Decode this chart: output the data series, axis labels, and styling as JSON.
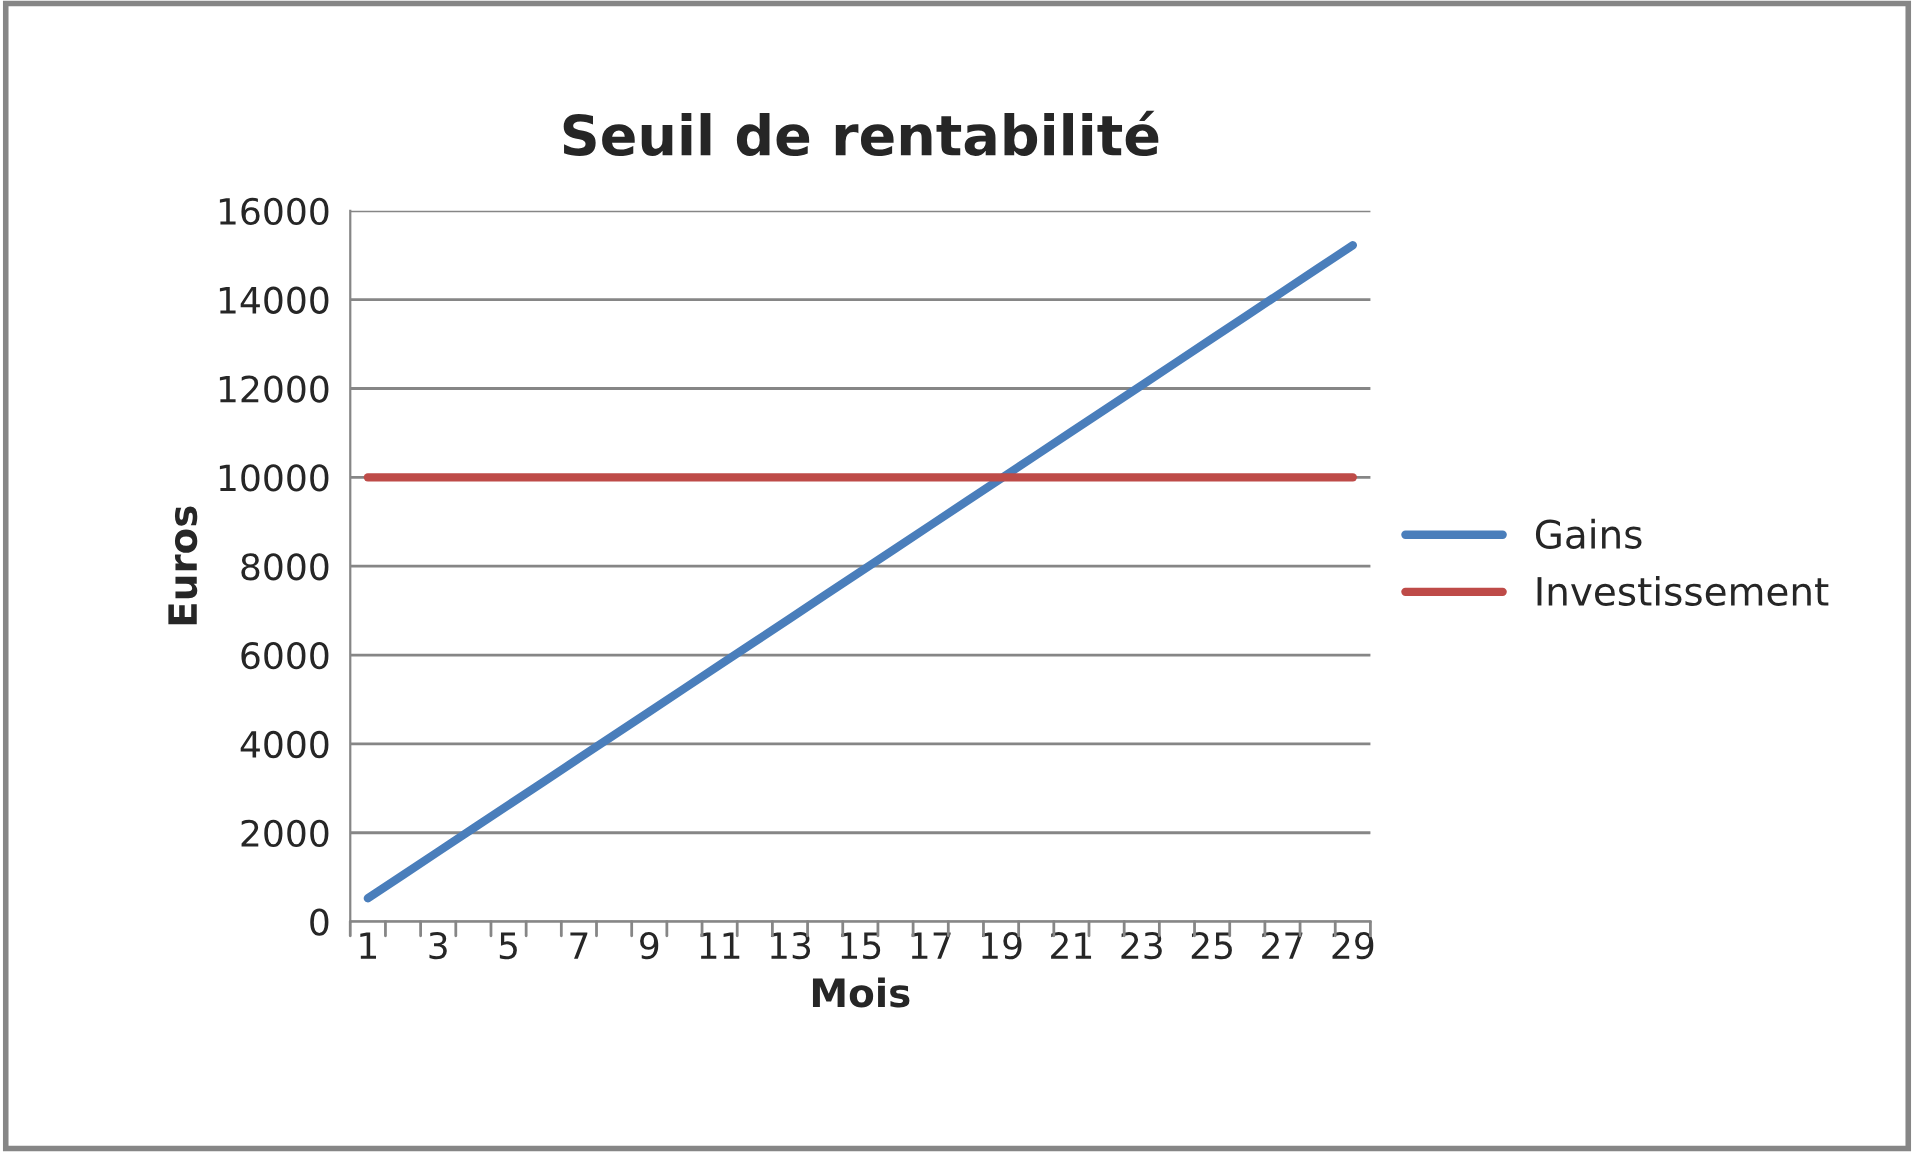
{
  "chart_data": {
    "type": "line",
    "title": "Seuil de rentabilité",
    "xlabel": "Mois",
    "ylabel": "Euros",
    "categories": [
      "1",
      null,
      "3",
      null,
      "5",
      null,
      "7",
      null,
      "9",
      null,
      "11",
      null,
      "13",
      null,
      "15",
      null,
      "17",
      null,
      "19",
      null,
      "21",
      null,
      "23",
      null,
      "25",
      null,
      "27",
      null,
      "29"
    ],
    "series": [
      {
        "name": "Gains",
        "color": "#4a7ebb",
        "values": [
          525,
          1050,
          1575,
          2100,
          2625,
          3150,
          3675,
          4200,
          4725,
          5250,
          5775,
          6300,
          6825,
          7350,
          7875,
          8400,
          8925,
          9450,
          9975,
          10500,
          11025,
          11550,
          12075,
          12600,
          13125,
          13650,
          14175,
          14700,
          15225
        ]
      },
      {
        "name": "Investissement",
        "color": "#be4b48",
        "values": [
          10000,
          10000,
          10000,
          10000,
          10000,
          10000,
          10000,
          10000,
          10000,
          10000,
          10000,
          10000,
          10000,
          10000,
          10000,
          10000,
          10000,
          10000,
          10000,
          10000,
          10000,
          10000,
          10000,
          10000,
          10000,
          10000,
          10000,
          10000,
          10000
        ]
      }
    ],
    "ylim": [
      0,
      16000
    ],
    "yticks": [
      0,
      2000,
      4000,
      6000,
      8000,
      10000,
      12000,
      14000,
      16000
    ],
    "grid": "y",
    "legend": "right",
    "marker": "none",
    "line_style": "solid"
  }
}
